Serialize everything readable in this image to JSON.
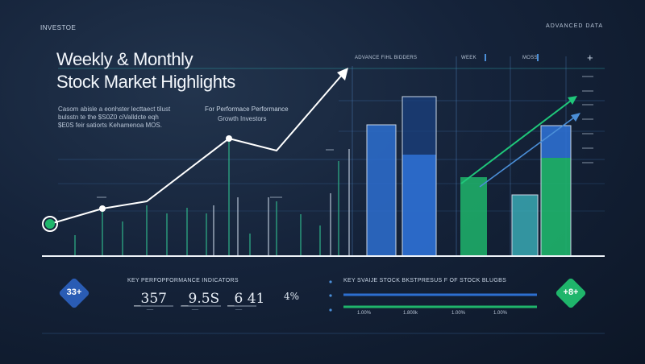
{
  "header": {
    "brand": "INVESTOE",
    "badge": "ADVANCED DATA"
  },
  "title": {
    "line1": "Weekly & Monthly",
    "line2": "Stock Market Highlights"
  },
  "description": {
    "line1": "Casom abisle a eonhster lecttaect tilust",
    "line2": "bulsstn te the $S0Z0 ciValldcte eqh",
    "line3": "$E0S feir satiorts Kehamenoa MOS."
  },
  "subheading": {
    "line1": "For Performace Performance",
    "line2": "Growth   Investors"
  },
  "chart_header": {
    "title": "ADVANCE FIHL BIDDERS",
    "tab1": "WEEK",
    "tab2": "MOSS",
    "plus": "+"
  },
  "kpi": {
    "title": "KEY PERFOPFORMANCE INDICATORS",
    "badge_left": "33+",
    "values": [
      {
        "value": "_357",
        "sub": "‾‾‾‾"
      },
      {
        "value": "_9.5S",
        "sub": "‾‾‾‾"
      },
      {
        "value": "_6 41",
        "sub": "‾‾‾‾"
      }
    ],
    "percent": "4%"
  },
  "stocks": {
    "title": "KEY SVAIJE STOCK BKSTPRESUS F OF STOCK BLUGBS",
    "ticks": [
      "1.00%",
      "1.800k",
      "1.00%",
      "1.00%"
    ],
    "badge_right": "+8+"
  },
  "colors": {
    "background": "#15233a",
    "accent_blue": "#2d6fd0",
    "accent_green": "#1fb56b",
    "accent_teal": "#3aa9b4",
    "line_white": "#ffffff"
  }
}
